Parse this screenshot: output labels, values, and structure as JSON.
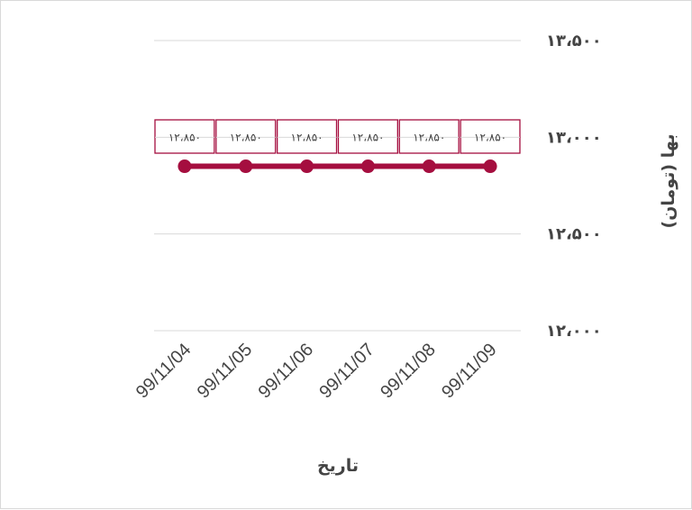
{
  "chart_data": {
    "type": "line",
    "categories": [
      "99/11/04",
      "99/11/05",
      "99/11/06",
      "99/11/07",
      "99/11/08",
      "99/11/09"
    ],
    "series": [
      {
        "values": [
          12850,
          12850,
          12850,
          12850,
          12850,
          12850
        ],
        "color": "#a50e3f"
      }
    ],
    "data_labels": [
      "۱۲،۸۵۰",
      "۱۲،۸۵۰",
      "۱۲،۸۵۰",
      "۱۲،۸۵۰",
      "۱۲،۸۵۰",
      "۱۲،۸۵۰"
    ],
    "y_ticks": [
      12000,
      12500,
      13000,
      13500
    ],
    "y_tick_labels": [
      "۱۲،۰۰۰",
      "۱۲،۵۰۰",
      "۱۳،۰۰۰",
      "۱۳،۵۰۰"
    ],
    "ylim": [
      12000,
      13500
    ],
    "xlabel": "تاریخ",
    "ylabel": "بها (تومان)",
    "y_axis_position": "right",
    "grid": true,
    "legend": "none"
  }
}
